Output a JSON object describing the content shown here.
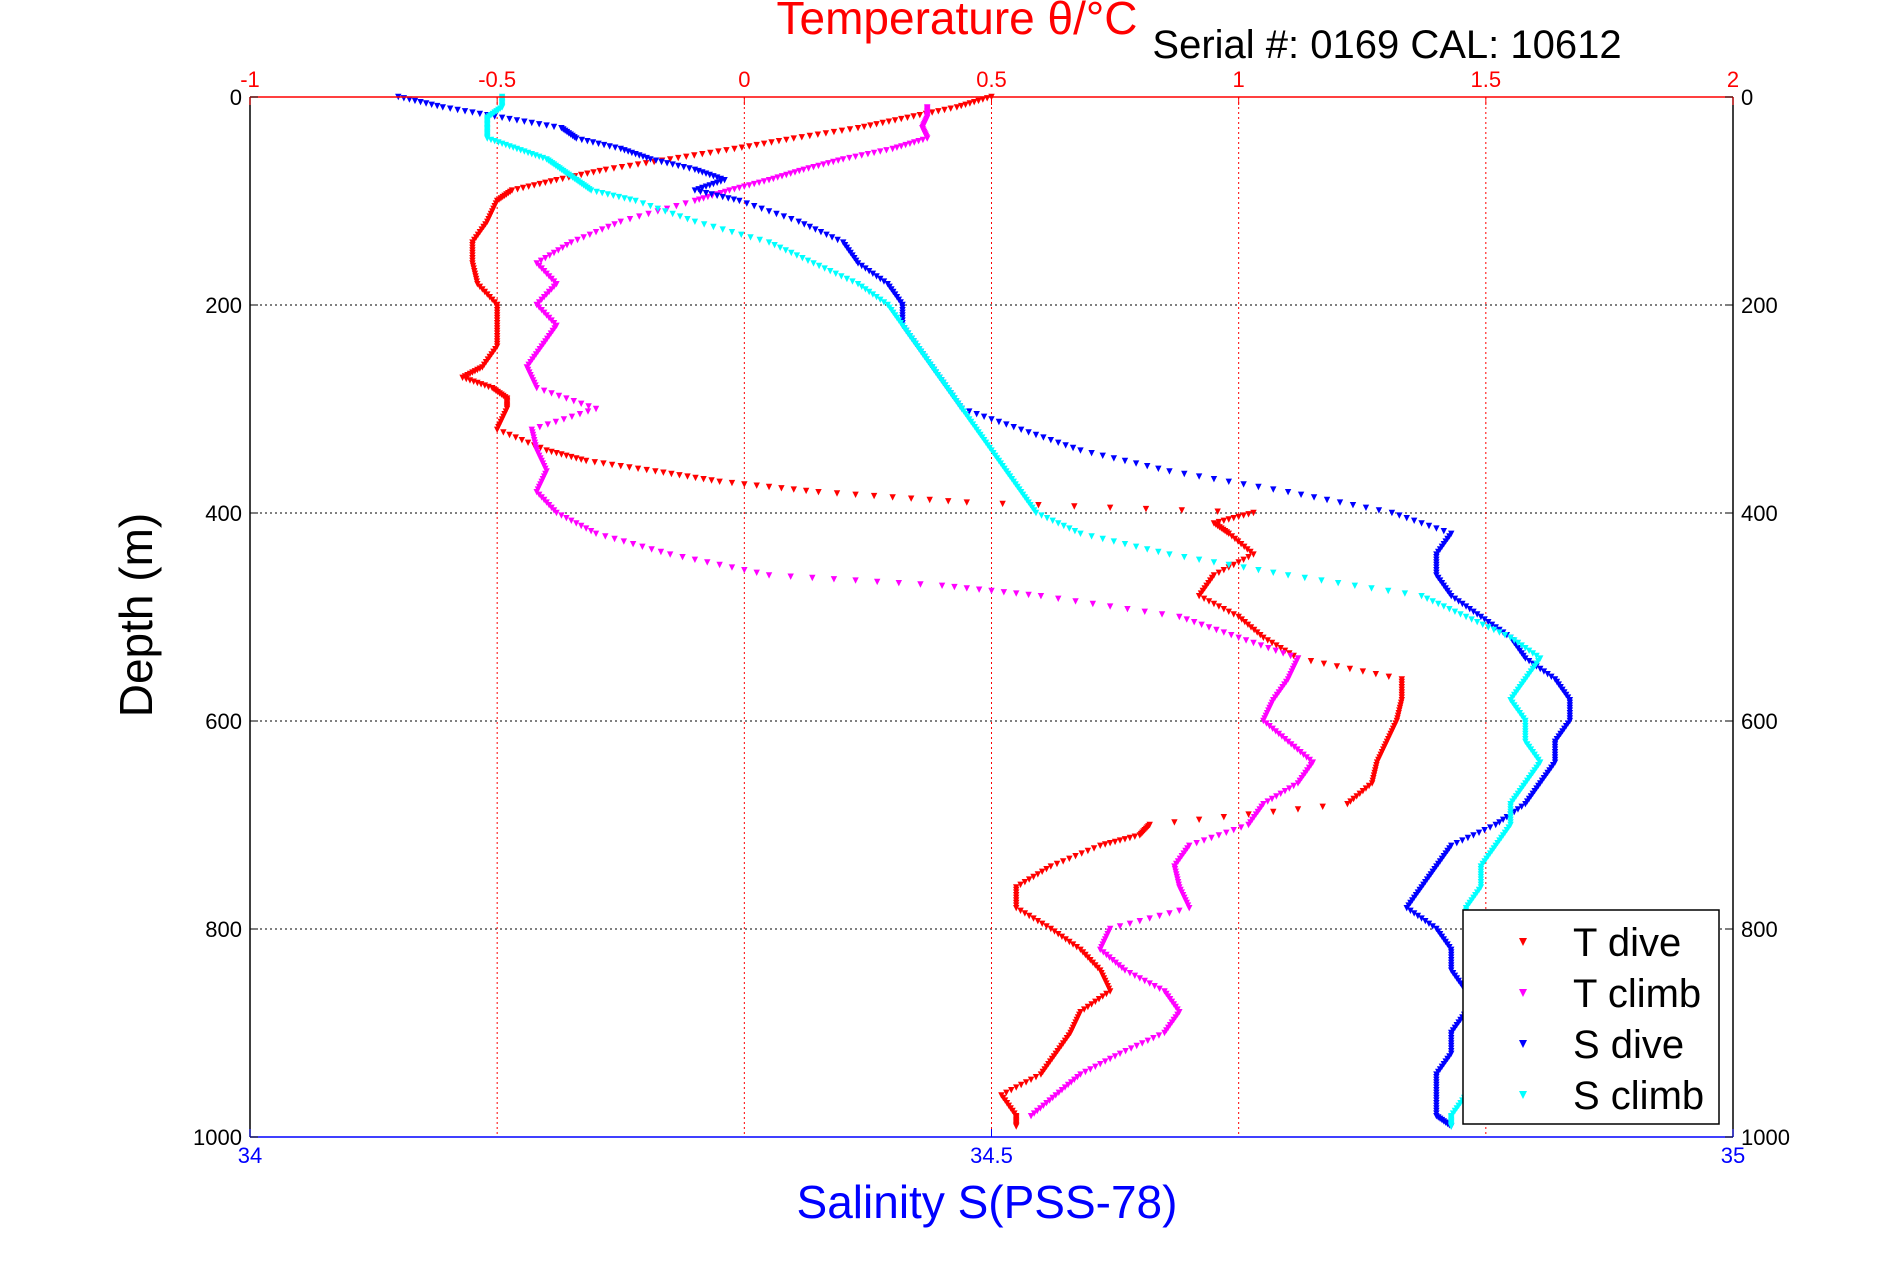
{
  "chart_data": {
    "type": "scatter",
    "title": "Temperature θ/°C",
    "subtitle": "Serial #: 0169 CAL: 10612",
    "ylabel": "Depth (m)",
    "xlabel_bottom": "Salinity S(PSS-78)",
    "xlabel_top": "Temperature θ/°C",
    "ylim": [
      0,
      1000
    ],
    "y_reversed": true,
    "y_ticks": [
      0,
      200,
      400,
      600,
      800,
      1000
    ],
    "x_top_lim": [
      -1,
      2
    ],
    "x_top_ticks": [
      "-1",
      "-0.5",
      "0",
      "0.5",
      "1",
      "1.5",
      "2"
    ],
    "x_top_tick_values": [
      -1,
      -0.5,
      0,
      0.5,
      1,
      1.5,
      2
    ],
    "x_bottom_lim": [
      34,
      35
    ],
    "x_bottom_ticks": [
      "34",
      "34.5",
      "35"
    ],
    "x_bottom_tick_values": [
      34,
      34.5,
      35
    ],
    "grid": true,
    "legend_position": "bottom-right",
    "colors": {
      "temperature_axis": "#ff0000",
      "salinity_axis": "#0000ff",
      "t_dive": "#ff0000",
      "t_climb": "#ff00ff",
      "s_dive": "#0000ff",
      "s_climb": "#00ffff"
    },
    "series": [
      {
        "name": "T dive",
        "axis": "temperature",
        "color": "#ff0000",
        "depth": [
          0,
          10,
          20,
          30,
          40,
          50,
          60,
          70,
          80,
          90,
          100,
          120,
          140,
          160,
          180,
          200,
          220,
          240,
          260,
          270,
          280,
          290,
          300,
          320,
          340,
          350,
          360,
          370,
          380,
          390,
          400,
          410,
          420,
          440,
          460,
          480,
          500,
          520,
          540,
          560,
          580,
          600,
          620,
          640,
          660,
          680,
          700,
          710,
          720,
          740,
          760,
          780,
          800,
          820,
          840,
          860,
          880,
          900,
          920,
          940,
          960,
          980,
          990
        ],
        "values": [
          0.5,
          0.43,
          0.33,
          0.23,
          0.1,
          -0.02,
          -0.15,
          -0.28,
          -0.38,
          -0.47,
          -0.5,
          -0.52,
          -0.55,
          -0.55,
          -0.54,
          -0.5,
          -0.5,
          -0.5,
          -0.53,
          -0.57,
          -0.51,
          -0.48,
          -0.48,
          -0.5,
          -0.4,
          -0.32,
          -0.18,
          -0.05,
          0.15,
          0.45,
          1.03,
          0.95,
          0.98,
          1.03,
          0.95,
          0.92,
          1.0,
          1.05,
          1.12,
          1.33,
          1.33,
          1.32,
          1.3,
          1.28,
          1.27,
          1.22,
          0.82,
          0.8,
          0.72,
          0.62,
          0.55,
          0.55,
          0.62,
          0.68,
          0.72,
          0.74,
          0.68,
          0.66,
          0.63,
          0.6,
          0.52,
          0.55,
          0.55
        ]
      },
      {
        "name": "T climb",
        "axis": "temperature",
        "color": "#ff00ff",
        "depth": [
          10,
          20,
          30,
          40,
          50,
          60,
          70,
          80,
          90,
          100,
          120,
          140,
          160,
          180,
          200,
          220,
          240,
          260,
          280,
          300,
          320,
          340,
          360,
          380,
          400,
          420,
          440,
          460,
          470,
          480,
          500,
          520,
          540,
          560,
          580,
          600,
          620,
          640,
          660,
          680,
          700,
          720,
          740,
          760,
          780,
          800,
          820,
          840,
          860,
          880,
          900,
          920,
          940,
          960,
          980
        ],
        "values": [
          0.37,
          0.37,
          0.36,
          0.37,
          0.3,
          0.2,
          0.12,
          0.05,
          -0.03,
          -0.1,
          -0.25,
          -0.35,
          -0.42,
          -0.38,
          -0.42,
          -0.38,
          -0.41,
          -0.44,
          -0.42,
          -0.3,
          -0.43,
          -0.42,
          -0.4,
          -0.42,
          -0.38,
          -0.3,
          -0.15,
          0.05,
          0.4,
          0.6,
          0.88,
          1.0,
          1.12,
          1.1,
          1.07,
          1.05,
          1.1,
          1.15,
          1.12,
          1.05,
          1.02,
          0.9,
          0.87,
          0.88,
          0.9,
          0.74,
          0.72,
          0.77,
          0.85,
          0.88,
          0.85,
          0.76,
          0.68,
          0.63,
          0.58
        ]
      },
      {
        "name": "S dive",
        "axis": "salinity",
        "color": "#0000ff",
        "depth": [
          0,
          10,
          20,
          30,
          40,
          50,
          60,
          70,
          80,
          90,
          100,
          120,
          140,
          160,
          180,
          200,
          220,
          240,
          260,
          280,
          300,
          320,
          340,
          360,
          380,
          400,
          420,
          440,
          460,
          480,
          500,
          520,
          540,
          560,
          580,
          600,
          620,
          640,
          660,
          680,
          700,
          720,
          740,
          760,
          780,
          800,
          820,
          840,
          860,
          880,
          900,
          920,
          940,
          960,
          980,
          990
        ],
        "values": [
          34.1,
          34.13,
          34.17,
          34.21,
          34.22,
          34.25,
          34.27,
          34.3,
          34.32,
          34.3,
          34.33,
          34.37,
          34.4,
          34.41,
          34.43,
          34.44,
          34.44,
          34.45,
          34.46,
          34.47,
          34.48,
          34.52,
          34.56,
          34.62,
          34.7,
          34.77,
          34.81,
          34.8,
          34.8,
          34.81,
          34.83,
          34.85,
          34.86,
          34.88,
          34.89,
          34.89,
          34.88,
          34.88,
          34.87,
          34.86,
          34.84,
          34.81,
          34.8,
          34.79,
          34.78,
          34.8,
          34.81,
          34.81,
          34.82,
          34.82,
          34.81,
          34.81,
          34.8,
          34.8,
          34.8,
          34.81
        ]
      },
      {
        "name": "S climb",
        "axis": "salinity",
        "color": "#00ffff",
        "depth": [
          0,
          10,
          20,
          30,
          40,
          50,
          60,
          70,
          80,
          90,
          100,
          120,
          140,
          160,
          180,
          200,
          220,
          240,
          260,
          280,
          300,
          320,
          340,
          360,
          380,
          400,
          420,
          440,
          460,
          480,
          500,
          520,
          540,
          560,
          580,
          600,
          620,
          640,
          660,
          680,
          700,
          720,
          740,
          760,
          780,
          800,
          820,
          840,
          860,
          880,
          900,
          920,
          940,
          960,
          980,
          990
        ],
        "values": [
          34.17,
          34.17,
          34.16,
          34.16,
          34.16,
          34.18,
          34.2,
          34.21,
          34.22,
          34.23,
          34.26,
          34.3,
          34.35,
          34.38,
          34.41,
          34.43,
          34.44,
          34.45,
          34.46,
          34.47,
          34.48,
          34.49,
          34.5,
          34.51,
          34.52,
          34.53,
          34.56,
          34.62,
          34.7,
          34.79,
          34.82,
          34.85,
          34.87,
          34.86,
          34.85,
          34.86,
          34.86,
          34.87,
          34.86,
          34.85,
          34.85,
          34.84,
          34.83,
          34.83,
          34.82,
          34.82,
          34.83,
          34.84,
          34.85,
          34.86,
          34.85,
          34.84,
          34.83,
          34.82,
          34.81,
          34.81
        ]
      }
    ]
  }
}
